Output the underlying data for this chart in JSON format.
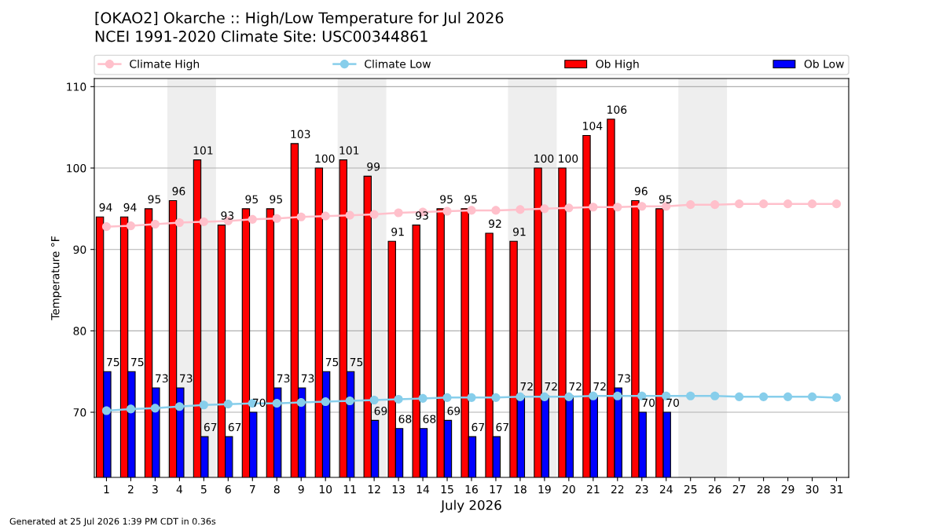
{
  "chart_data": {
    "type": "bar",
    "title": "[OKAO2] Okarche :: High/Low Temperature for Jul 2026",
    "subtitle": "NCEI 1991-2020 Climate Site: USC00344861",
    "xlabel": "July 2026",
    "ylabel": "Temperature °F",
    "x": [
      1,
      2,
      3,
      4,
      5,
      6,
      7,
      8,
      9,
      10,
      11,
      12,
      13,
      14,
      15,
      16,
      17,
      18,
      19,
      20,
      21,
      22,
      23,
      24,
      25,
      26,
      27,
      28,
      29,
      30,
      31
    ],
    "series": [
      {
        "name": "Climate High",
        "type": "line",
        "marker": "circle",
        "color": "#ffc0cb",
        "values": [
          92.8,
          92.9,
          93.1,
          93.3,
          93.4,
          93.5,
          93.7,
          93.8,
          94.0,
          94.1,
          94.2,
          94.3,
          94.5,
          94.6,
          94.7,
          94.8,
          94.8,
          94.9,
          95.0,
          95.1,
          95.2,
          95.2,
          95.3,
          95.3,
          95.5,
          95.5,
          95.6,
          95.6,
          95.6,
          95.6,
          95.6
        ]
      },
      {
        "name": "Climate Low",
        "type": "line",
        "marker": "circle",
        "color": "#87ceeb",
        "values": [
          70.2,
          70.4,
          70.5,
          70.7,
          70.9,
          71.0,
          71.1,
          71.1,
          71.2,
          71.3,
          71.4,
          71.5,
          71.6,
          71.7,
          71.8,
          71.8,
          71.8,
          71.9,
          71.9,
          71.9,
          72.0,
          72.0,
          72.0,
          72.0,
          72.0,
          72.0,
          71.9,
          71.9,
          71.9,
          71.9,
          71.8
        ]
      },
      {
        "name": "Ob High",
        "color": "#ff0000",
        "values": [
          94,
          94,
          95,
          96,
          101,
          93,
          95,
          95,
          103,
          100,
          101,
          99,
          91,
          93,
          95,
          95,
          92,
          91,
          100,
          100,
          104,
          106,
          96,
          95,
          null,
          null,
          null,
          null,
          null,
          null,
          null
        ],
        "value_labels": [
          "94",
          "94",
          "95",
          "96",
          "101",
          "93",
          "95",
          "95",
          "103",
          "100",
          "101",
          "99",
          "91",
          "93",
          "95",
          "95",
          "92",
          "91",
          "100",
          "100",
          "104",
          "106",
          "96",
          "95",
          null,
          null,
          null,
          null,
          null,
          null,
          null
        ]
      },
      {
        "name": "Ob Low",
        "color": "#0000ff",
        "values": [
          75,
          75,
          73,
          73,
          67,
          67,
          70,
          73,
          73,
          75,
          75,
          69,
          68,
          68,
          69,
          67,
          67,
          72,
          72,
          72,
          72,
          73,
          70,
          70,
          null,
          null,
          null,
          null,
          null,
          null,
          null
        ],
        "value_labels": [
          "75",
          "75",
          "73",
          "73",
          "67",
          "67",
          "70",
          "73",
          "73",
          "75",
          "75",
          "69",
          "68",
          "68",
          "69",
          "67",
          "67",
          "72",
          "72",
          "72",
          "72",
          "73",
          "70",
          "70",
          null,
          null,
          null,
          null,
          null,
          null,
          null
        ]
      }
    ],
    "xlim": [
      0.5,
      31.5
    ],
    "xticks": [
      1,
      2,
      3,
      4,
      5,
      6,
      7,
      8,
      9,
      10,
      11,
      12,
      13,
      14,
      15,
      16,
      17,
      18,
      19,
      20,
      21,
      22,
      23,
      24,
      25,
      26,
      27,
      28,
      29,
      30,
      31
    ],
    "ylim": [
      62,
      111
    ],
    "yticks": [
      70,
      80,
      90,
      100,
      110
    ],
    "grid": "y",
    "legend": "top",
    "bands": [
      {
        "axis": "x",
        "from": 3.5,
        "to": 5.5,
        "color": "#eeeeee"
      },
      {
        "axis": "x",
        "from": 10.5,
        "to": 12.5,
        "color": "#eeeeee"
      },
      {
        "axis": "x",
        "from": 17.5,
        "to": 19.5,
        "color": "#eeeeee"
      },
      {
        "axis": "x",
        "from": 24.5,
        "to": 26.5,
        "color": "#eeeeee"
      }
    ],
    "annotations": [
      "Generated at 25 Jul 2026 1:39 PM CDT in 0.36s"
    ]
  }
}
